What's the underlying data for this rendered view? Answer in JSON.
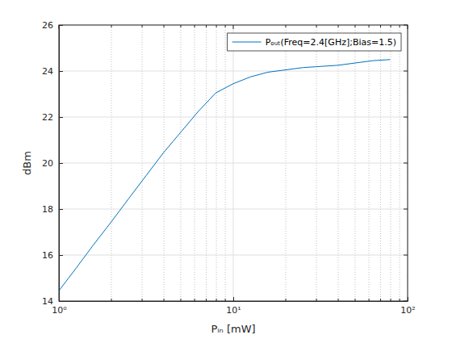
{
  "chart_data": {
    "type": "line",
    "x_label": "Pᵢₙ  [mW]",
    "y_label": "dBm",
    "x": [
      1,
      1.26,
      1.58,
      2,
      2.51,
      3.16,
      3.98,
      5.01,
      6.31,
      7.94,
      10,
      12.6,
      15.8,
      20,
      25.1,
      31.6,
      39.8,
      50.1,
      63.1,
      79.4
    ],
    "series": [
      {
        "name": "Pₒᵤₜ(Freq=2.4[GHz];Bias=1.5)",
        "color": "#0072bd",
        "values": [
          14.45,
          15.45,
          16.45,
          17.45,
          18.45,
          19.45,
          20.45,
          21.35,
          22.25,
          23.05,
          23.45,
          23.75,
          23.95,
          24.05,
          24.15,
          24.2,
          24.25,
          24.35,
          24.45,
          24.5
        ]
      }
    ],
    "xlim": [
      1,
      100
    ],
    "ylim": [
      14,
      26
    ],
    "xticks": [
      {
        "value": 1,
        "label": "10⁰"
      },
      {
        "value": 10,
        "label": "10¹"
      },
      {
        "value": 100,
        "label": "10²"
      }
    ],
    "yticks": [
      14,
      16,
      18,
      20,
      22,
      24,
      26
    ],
    "log": "x",
    "grid": true,
    "legend": "northeast"
  }
}
